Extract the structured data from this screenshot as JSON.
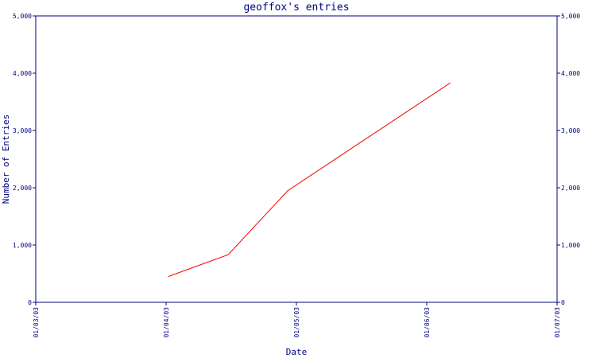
{
  "chart_data": {
    "type": "line",
    "title": "geoffox's entries",
    "xlabel": "Date",
    "ylabel": "Number of Entries",
    "x_ticks": [
      "01/03/03",
      "01/04/03",
      "01/05/03",
      "01/06/03",
      "01/07/03"
    ],
    "y_ticks": [
      "0",
      "1,000",
      "2,000",
      "3,000",
      "4,000",
      "5,000"
    ],
    "ylim": [
      0,
      5000
    ],
    "xlim": [
      "2003-03-01",
      "2003-07-01"
    ],
    "grid": false,
    "series": [
      {
        "color": "#ff0000",
        "points": [
          {
            "x": "2003-04-01",
            "y": 450
          },
          {
            "x": "2003-04-15",
            "y": 830
          },
          {
            "x": "2003-04-29",
            "y": 1950
          },
          {
            "x": "2003-06-06",
            "y": 3830
          }
        ]
      }
    ]
  }
}
